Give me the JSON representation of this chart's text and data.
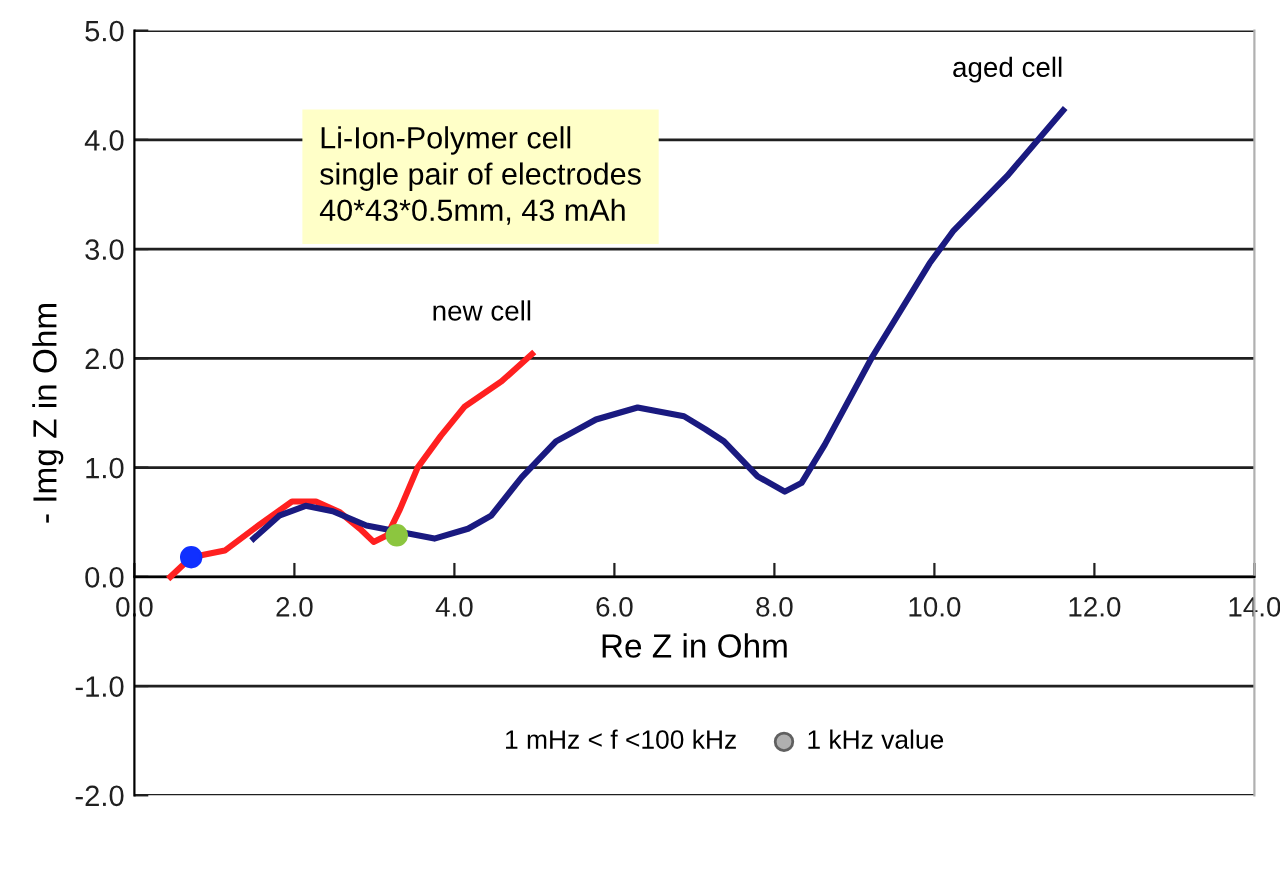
{
  "chart_data": {
    "type": "line",
    "xlabel": "Re Z in Ohm",
    "ylabel": "- Img Z in Ohm",
    "xlim": [
      0,
      14
    ],
    "xticks": [
      {
        "value": 0,
        "label": "0.0"
      },
      {
        "value": 2,
        "label": "2.0"
      },
      {
        "value": 4,
        "label": "4.0"
      },
      {
        "value": 6,
        "label": "6.0"
      },
      {
        "value": 8,
        "label": "8.0"
      },
      {
        "value": 10,
        "label": "10.0"
      },
      {
        "value": 12,
        "label": "12.0"
      },
      {
        "value": 14,
        "label": "14.0"
      }
    ],
    "ylim": [
      -2,
      5
    ],
    "yticks": [
      {
        "value": -2,
        "label": "-2.0"
      },
      {
        "value": -1,
        "label": "-1.0"
      },
      {
        "value": 0,
        "label": "0.0"
      },
      {
        "value": 1,
        "label": "1.0"
      },
      {
        "value": 2,
        "label": "2.0"
      },
      {
        "value": 3,
        "label": "3.0"
      },
      {
        "value": 4,
        "label": "4.0"
      },
      {
        "value": 5,
        "label": "5.0"
      }
    ],
    "grid": "y",
    "legend": false,
    "series": [
      {
        "name": "new cell",
        "color": "#ff2020",
        "x": [
          0.45,
          0.71,
          1.13,
          1.55,
          1.97,
          2.27,
          2.57,
          2.82,
          2.99,
          3.16,
          3.32,
          3.54,
          3.83,
          4.13,
          4.59,
          4.97
        ],
        "values": [
          0.0,
          0.18,
          0.24,
          0.47,
          0.69,
          0.69,
          0.59,
          0.44,
          0.32,
          0.38,
          0.62,
          1.0,
          1.29,
          1.56,
          1.79,
          2.04
        ]
      },
      {
        "name": "aged cell",
        "color": "#1a1a80",
        "x": [
          1.49,
          1.81,
          2.14,
          2.48,
          2.9,
          3.75,
          4.17,
          4.46,
          4.84,
          5.27,
          5.77,
          6.29,
          6.87,
          7.14,
          7.37,
          7.79,
          8.13,
          8.34,
          8.63,
          9.22,
          9.94,
          10.24,
          10.91,
          11.61
        ],
        "values": [
          0.35,
          0.56,
          0.65,
          0.6,
          0.47,
          0.35,
          0.44,
          0.56,
          0.91,
          1.24,
          1.44,
          1.55,
          1.47,
          1.35,
          1.24,
          0.92,
          0.78,
          0.86,
          1.21,
          2.01,
          2.87,
          3.17,
          3.67,
          4.27
        ]
      },
      {
        "type": "scatter",
        "color": "#1030ff",
        "x": [
          0.71
        ],
        "values": [
          0.18
        ]
      },
      {
        "type": "scatter",
        "color": "#8cc63f",
        "x": [
          3.28
        ],
        "values": [
          0.38
        ]
      }
    ],
    "annotations": [
      "Li-Ion-Polymer cell\nsingle pair of electrodes\n40*43*0.5mm, 43 mAh",
      "1 mHz < f <100 kHz",
      "1 kHz value"
    ]
  }
}
